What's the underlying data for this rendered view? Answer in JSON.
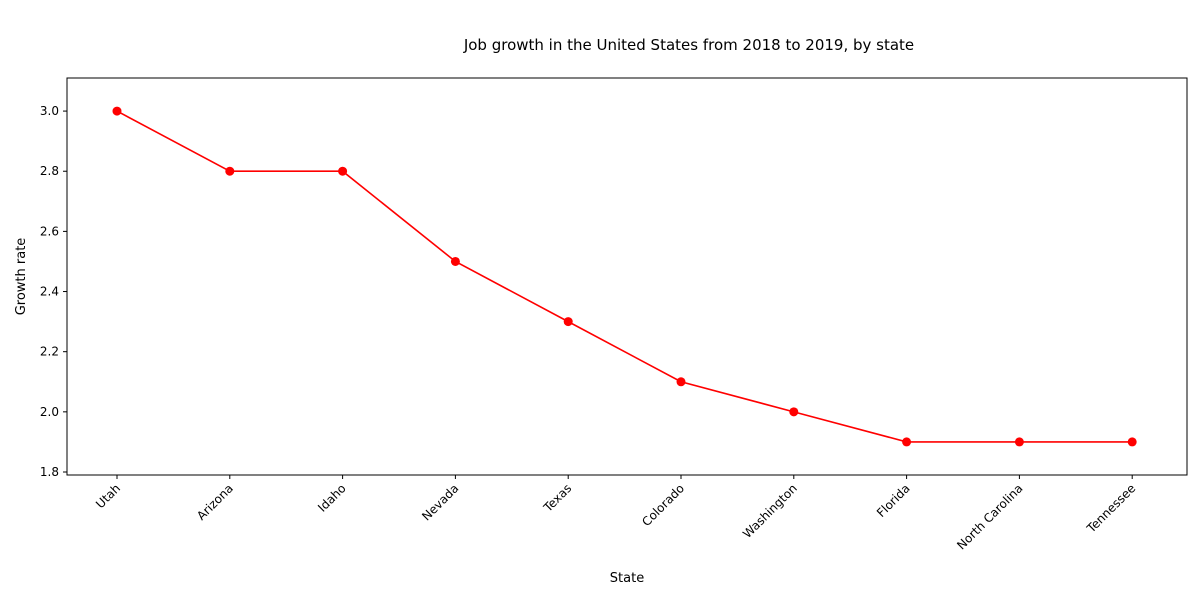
{
  "chart_data": {
    "type": "line",
    "title": "Job growth in the United States from 2018 to 2019, by state",
    "xlabel": "State",
    "ylabel": "Growth rate",
    "categories": [
      "Utah",
      "Arizona",
      "Idaho",
      "Nevada",
      "Texas",
      "Colorado",
      "Washington",
      "Florida",
      "North Carolina",
      "Tennessee"
    ],
    "series": [
      {
        "values": [
          3.0,
          2.8,
          2.8,
          2.5,
          2.3,
          2.1,
          2.0,
          1.9,
          1.9,
          1.9
        ],
        "color": "#ff0000",
        "marker": "circle"
      }
    ],
    "ylim": [
      1.79,
      3.11
    ],
    "yticks": [
      "1.8",
      "2.0",
      "2.2",
      "2.4",
      "2.6",
      "2.8",
      "3.0"
    ],
    "grid": false,
    "legend": "none"
  }
}
